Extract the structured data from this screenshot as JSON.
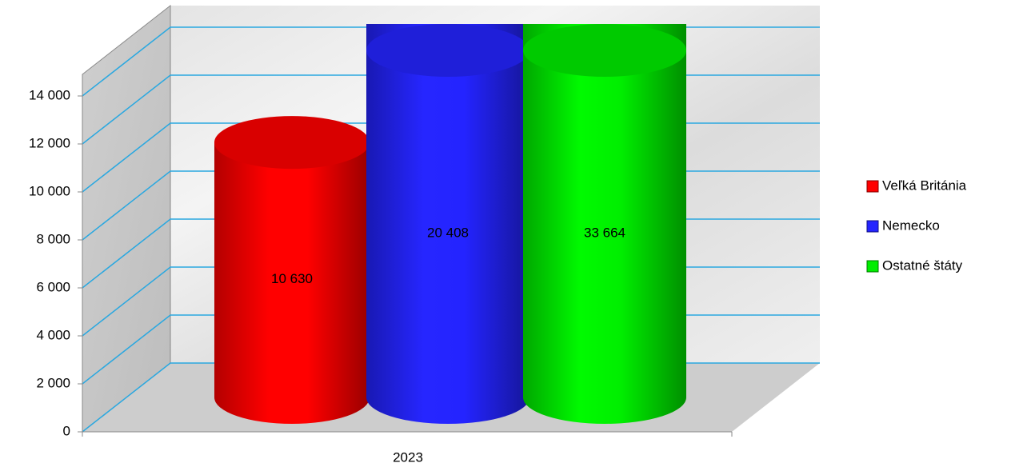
{
  "chart_data": {
    "type": "bar3d",
    "categories": [
      "2023"
    ],
    "series": [
      {
        "name": "Veľká Británia",
        "color": "#ff0000",
        "values": [
          10630
        ],
        "value_labels": [
          "10 630"
        ]
      },
      {
        "name": "Nemecko",
        "color": "#2424ff",
        "values": [
          20408
        ],
        "value_labels": [
          "20 408"
        ]
      },
      {
        "name": "Ostatné štáty",
        "color": "#00ee00",
        "values": [
          33664
        ],
        "value_labels": [
          "33 664"
        ]
      }
    ],
    "ylim": [
      0,
      14000
    ],
    "yticks": [
      0,
      {
        "value": 2000,
        "label": "2 000"
      },
      {
        "value": 4000,
        "label": "4 000"
      },
      {
        "value": 6000,
        "label": "6 000"
      },
      {
        "value": 8000,
        "label": "8 000"
      },
      {
        "value": 10000,
        "label": "10 000"
      },
      {
        "value": 12000,
        "label": "12 000"
      },
      {
        "value": 14000,
        "label": "14 000"
      }
    ],
    "grid": true,
    "legend": "right"
  }
}
